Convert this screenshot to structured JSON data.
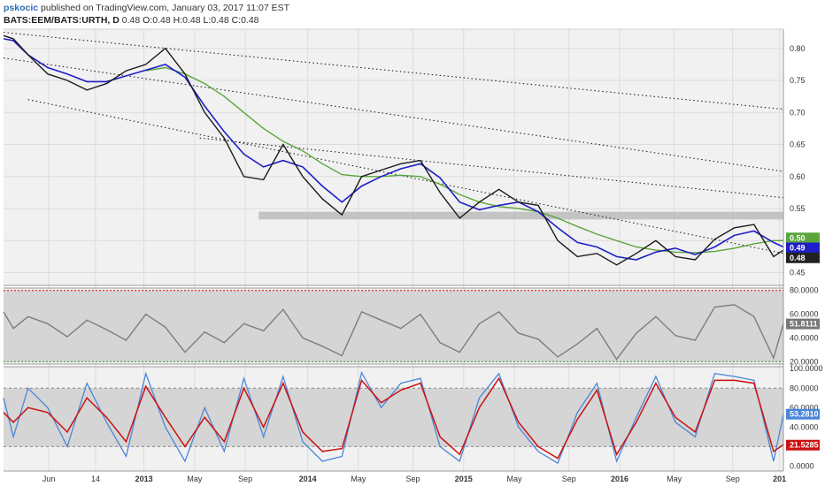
{
  "header": {
    "author": "pskocic",
    "published": "published on TradingView.com, January 03, 2017 11:07 EST",
    "symbol": "BATS:EEM/BATS:URTH, D",
    "last": "0.48",
    "o_label": "O:",
    "o_value": "0.48",
    "h_label": "H:",
    "h_value": "0.48",
    "l_label": "L:",
    "l_value": "0.48",
    "c_label": "C:",
    "c_value": "0.48"
  },
  "colors": {
    "price": "#1a1a1a",
    "ma_fast": "#1f1fc8",
    "ma_slow": "#5aa63c",
    "rsi": "#7d7d7d",
    "stoch_k": "#4a86d9",
    "stoch_d": "#cc1111",
    "band_fill": "#d5d5d5",
    "panel_bg": "#f1f1f1",
    "overbought_line": "#e02020",
    "oversold_line": "#3a9a3a"
  },
  "chart_data": [
    {
      "type": "line",
      "name": "price-panel",
      "ylim": [
        0.43,
        0.83
      ],
      "yticks": [
        "0.80",
        "0.75",
        "0.70",
        "0.65",
        "0.60",
        "0.55",
        "0.50",
        "0.45"
      ],
      "xticks": [
        "Jun",
        "14",
        "2013",
        "May",
        "Sep",
        "2014",
        "May",
        "Sep",
        "2015",
        "May",
        "Sep",
        "2016",
        "May",
        "Sep",
        "201"
      ],
      "x": [
        0,
        2,
        5,
        9,
        13,
        17,
        21,
        25,
        29,
        33,
        37,
        41,
        45,
        49,
        53,
        57,
        61,
        65,
        69,
        73,
        77,
        81,
        85,
        89,
        93,
        97,
        101,
        105,
        109,
        113,
        117,
        121,
        125,
        129,
        133,
        137,
        141,
        145,
        149,
        153,
        157,
        159
      ],
      "series": [
        {
          "values": [
            0.82,
            0.815,
            0.79,
            0.76,
            0.75,
            0.735,
            0.745,
            0.765,
            0.775,
            0.8,
            0.76,
            0.7,
            0.66,
            0.6,
            0.595,
            0.65,
            0.6,
            0.565,
            0.54,
            0.6,
            0.61,
            0.62,
            0.625,
            0.575,
            0.535,
            0.56,
            0.58,
            0.56,
            0.555,
            0.5,
            0.475,
            0.48,
            0.462,
            0.48,
            0.5,
            0.475,
            0.47,
            0.502,
            0.52,
            0.525,
            0.475,
            0.485
          ]
        },
        {
          "name": "",
          "values": [
            0.815,
            0.812,
            0.79,
            0.77,
            0.76,
            0.748,
            0.748,
            0.757,
            0.766,
            0.775,
            0.755,
            0.71,
            0.67,
            0.635,
            0.615,
            0.625,
            0.615,
            0.585,
            0.56,
            0.585,
            0.6,
            0.612,
            0.62,
            0.598,
            0.56,
            0.548,
            0.555,
            0.56,
            0.545,
            0.52,
            0.497,
            0.49,
            0.475,
            0.47,
            0.482,
            0.488,
            0.478,
            0.49,
            0.508,
            0.515,
            0.497,
            0.49
          ]
        },
        {
          "name": "",
          "values": [
            null,
            null,
            null,
            null,
            null,
            null,
            null,
            null,
            0.765,
            0.77,
            0.76,
            0.745,
            0.725,
            0.7,
            0.675,
            0.655,
            0.64,
            0.62,
            0.603,
            0.6,
            0.6,
            0.602,
            0.6,
            0.588,
            0.572,
            0.56,
            0.553,
            0.55,
            0.545,
            0.535,
            0.522,
            0.51,
            0.5,
            0.49,
            0.485,
            0.482,
            0.481,
            0.483,
            0.488,
            0.495,
            0.5,
            0.5
          ]
        }
      ],
      "last_values": [
        "0.50",
        "0.49",
        "0.48"
      ]
    },
    {
      "type": "line",
      "name": "rsi-panel",
      "ylim": [
        18,
        82
      ],
      "yticks": [
        "80.0000",
        "60.0000",
        "40.0000",
        "20.0000"
      ],
      "series": [
        {
          "values": [
            62,
            48,
            58,
            52,
            41,
            55,
            47,
            38,
            60,
            49,
            28,
            45,
            36,
            52,
            46,
            64,
            40,
            33,
            25,
            62,
            55,
            48,
            60,
            36,
            28,
            52,
            62,
            44,
            39,
            24,
            35,
            48,
            22,
            44,
            58,
            42,
            38,
            66,
            68,
            58,
            23,
            52
          ]
        }
      ],
      "last_value": "51.8111"
    },
    {
      "type": "line",
      "name": "stochastic-panel",
      "ylim": [
        -5,
        102
      ],
      "yticks": [
        "100.0000",
        "80.0000",
        "60.0000",
        "40.0000",
        "20.0000",
        "0.0000"
      ],
      "series": [
        {
          "values": [
            70,
            30,
            80,
            60,
            20,
            85,
            45,
            10,
            95,
            40,
            5,
            60,
            15,
            90,
            30,
            92,
            25,
            5,
            10,
            96,
            60,
            85,
            90,
            20,
            5,
            70,
            95,
            40,
            15,
            3,
            55,
            85,
            5,
            50,
            92,
            45,
            30,
            95,
            92,
            88,
            5,
            53
          ]
        },
        {
          "values": [
            55,
            45,
            60,
            55,
            35,
            70,
            50,
            25,
            82,
            50,
            20,
            50,
            25,
            80,
            40,
            85,
            35,
            15,
            18,
            88,
            65,
            78,
            85,
            30,
            12,
            60,
            90,
            45,
            20,
            8,
            48,
            78,
            12,
            45,
            85,
            50,
            35,
            88,
            88,
            85,
            15,
            22
          ]
        }
      ],
      "last_values": [
        "53.2810",
        "21.5285"
      ]
    }
  ]
}
